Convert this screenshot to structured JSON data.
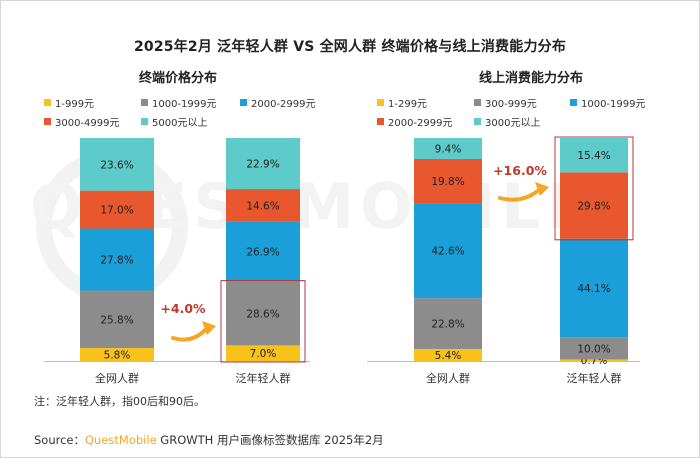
{
  "title": "2025年2月 泛年轻人群 VS 全网人群 终端价格与线上消费能力分布",
  "note": "注：泛年轻人群，指00后和90后。",
  "source": {
    "prefix": "Source：",
    "brand": "QuestMobile",
    "text": " GROWTH 用户画像标签数据库 2025年2月"
  },
  "watermark": "QUESTMOBILE",
  "colors": {
    "yellow": "#f9c21b",
    "gray": "#8c8c8c",
    "blue": "#1a9fd8",
    "red": "#e8572d",
    "teal": "#5ecbcb",
    "highlight_border": "#b0373c",
    "arrow": "#f5a623",
    "callout_text": "#c0392b"
  },
  "chart_data": [
    {
      "type": "stacked-bar",
      "title": "终端价格分布",
      "categories": [
        "全网人群",
        "泛年轻人群"
      ],
      "legend": [
        "1-999元",
        "1000-1999元",
        "2000-2999元",
        "3000-4999元",
        "5000元以上"
      ],
      "series": [
        {
          "name": "1-999元",
          "color": "yellow",
          "values": [
            5.8,
            7.0
          ]
        },
        {
          "name": "1000-1999元",
          "color": "gray",
          "values": [
            25.8,
            28.6
          ]
        },
        {
          "name": "2000-2999元",
          "color": "blue",
          "values": [
            27.8,
            26.9
          ]
        },
        {
          "name": "3000-4999元",
          "color": "red",
          "values": [
            17.0,
            14.6
          ]
        },
        {
          "name": "5000元以上",
          "color": "teal",
          "values": [
            23.6,
            22.9
          ]
        }
      ],
      "labels": [
        [
          "5.8%",
          "25.8%",
          "27.8%",
          "17.0%",
          "23.6%"
        ],
        [
          "7.0%",
          "28.6%",
          "26.9%",
          "14.6%",
          "22.9%"
        ]
      ],
      "callout": "+4.0%",
      "highlight_category": 1,
      "highlight_series": [
        0,
        1
      ]
    },
    {
      "type": "stacked-bar",
      "title": "线上消费能力分布",
      "categories": [
        "全网人群",
        "泛年轻人群"
      ],
      "legend": [
        "1-299元",
        "300-999元",
        "1000-1999元",
        "2000-2999元",
        "3000元以上"
      ],
      "series": [
        {
          "name": "1-299元",
          "color": "yellow",
          "values": [
            5.4,
            0.7
          ]
        },
        {
          "name": "300-999元",
          "color": "gray",
          "values": [
            22.8,
            10.0
          ]
        },
        {
          "name": "1000-1999元",
          "color": "blue",
          "values": [
            42.6,
            44.1
          ]
        },
        {
          "name": "2000-2999元",
          "color": "red",
          "values": [
            19.8,
            29.8
          ]
        },
        {
          "name": "3000元以上",
          "color": "teal",
          "values": [
            9.4,
            15.4
          ]
        }
      ],
      "labels": [
        [
          "5.4%",
          "22.8%",
          "42.6%",
          "19.8%",
          "9.4%"
        ],
        [
          "0.7%",
          "10.0%",
          "44.1%",
          "29.8%",
          "15.4%"
        ]
      ],
      "callout": "+16.0%",
      "highlight_category": 1,
      "highlight_series": [
        3,
        4
      ]
    }
  ]
}
